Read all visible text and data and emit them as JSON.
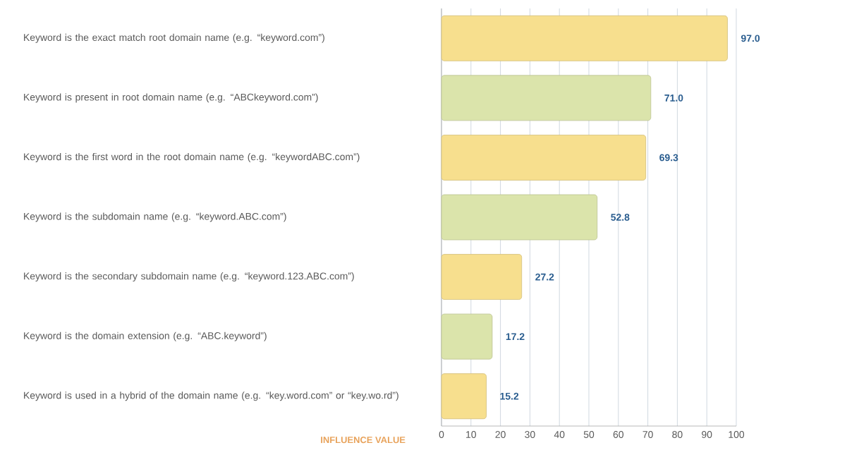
{
  "chart_data": {
    "type": "bar",
    "orientation": "horizontal",
    "xlabel": "INFLUENCE VALUE",
    "categories": [
      "Keyword is the exact match root domain name (e.g. “keyword.com”)",
      "Keyword is present in root domain name (e.g. “ABCkeyword.com”)",
      "Keyword is the first word in the root domain name (e.g. “keywordABC.com”)",
      "Keyword is the subdomain name (e.g. “keyword.ABC.com”)",
      "Keyword is the secondary subdomain name (e.g. “keyword.123.ABC.com”)",
      "Keyword is the domain extension (e.g. “ABC.keyword”)",
      "Keyword is used in a hybrid of the domain name (e.g. “key.word.com” or “key.wo.rd”)"
    ],
    "values": [
      97.0,
      71.0,
      69.3,
      52.8,
      27.2,
      17.2,
      15.2
    ],
    "value_labels": [
      "97.0",
      "71.0",
      "69.3",
      "52.8",
      "27.2",
      "17.2",
      "15.2"
    ],
    "colors": [
      "#f7df8e",
      "#dbe4ab",
      "#f7df8e",
      "#dbe4ab",
      "#f7df8e",
      "#dbe4ab",
      "#f7df8e"
    ],
    "xlim": [
      0,
      100
    ],
    "xticks": [
      0,
      10,
      20,
      30,
      40,
      50,
      60,
      70,
      80,
      90,
      100
    ],
    "grid": "x"
  }
}
